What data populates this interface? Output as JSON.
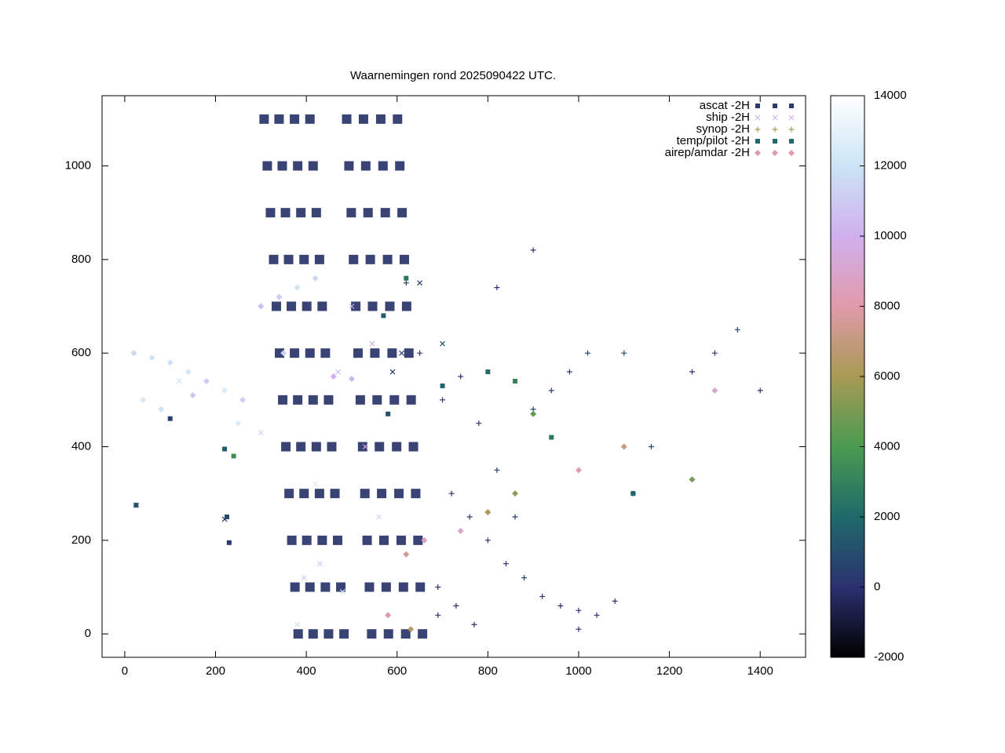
{
  "chart_data": {
    "type": "scatter",
    "title": "Waarnemingen rond 2025090422 UTC.",
    "xlim": [
      -50,
      1500
    ],
    "ylim": [
      -50,
      1150
    ],
    "xticks": [
      0,
      200,
      400,
      600,
      800,
      1000,
      1200,
      1400
    ],
    "yticks": [
      0,
      200,
      400,
      600,
      800,
      1000
    ],
    "cblim": [
      -2000,
      14000
    ],
    "cbticks": [
      -2000,
      0,
      2000,
      4000,
      6000,
      8000,
      10000,
      12000,
      14000
    ],
    "palette": [
      [
        -2000,
        "#000000"
      ],
      [
        0,
        "#2c3170"
      ],
      [
        2000,
        "#1f6a6a"
      ],
      [
        4000,
        "#4a9a50"
      ],
      [
        6000,
        "#a89a55"
      ],
      [
        8000,
        "#e09aaa"
      ],
      [
        10000,
        "#d0b0ee"
      ],
      [
        12000,
        "#cce4f5"
      ],
      [
        14000,
        "#ffffff"
      ]
    ],
    "legend": "top-right",
    "series": [
      {
        "name": "ascat -2H",
        "marker": "dot",
        "color": "#2e3a6e",
        "x": [
          382,
          415,
          449,
          483,
          375,
          408,
          442,
          476,
          368,
          401,
          435,
          469,
          362,
          395,
          429,
          463,
          355,
          388,
          422,
          456,
          348,
          381,
          415,
          449,
          341,
          374,
          408,
          442,
          334,
          367,
          401,
          435,
          328,
          361,
          395,
          429,
          321,
          354,
          388,
          422,
          314,
          347,
          381,
          415,
          307,
          340,
          374,
          408,
          544,
          581,
          619,
          656,
          539,
          576,
          614,
          651,
          534,
          571,
          609,
          646,
          529,
          566,
          604,
          641,
          524,
          561,
          599,
          636,
          519,
          556,
          594,
          631,
          514,
          551,
          589,
          626,
          509,
          546,
          584,
          621,
          504,
          541,
          579,
          616,
          499,
          536,
          574,
          611,
          494,
          531,
          569,
          606,
          489,
          526,
          564,
          601
        ],
        "y": [
          0,
          0,
          0,
          0,
          100,
          100,
          100,
          100,
          200,
          200,
          200,
          200,
          300,
          300,
          300,
          300,
          400,
          400,
          400,
          400,
          500,
          500,
          500,
          500,
          600,
          600,
          600,
          600,
          700,
          700,
          700,
          700,
          800,
          800,
          800,
          800,
          900,
          900,
          900,
          900,
          1000,
          1000,
          1000,
          1000,
          1100,
          1100,
          1100,
          1100,
          0,
          0,
          0,
          0,
          100,
          100,
          100,
          100,
          200,
          200,
          200,
          200,
          300,
          300,
          300,
          300,
          400,
          400,
          400,
          400,
          500,
          500,
          500,
          500,
          600,
          600,
          600,
          600,
          700,
          700,
          700,
          700,
          800,
          800,
          800,
          800,
          900,
          900,
          900,
          900,
          1000,
          1000,
          1000,
          1000,
          1100,
          1100,
          1100,
          1100
        ]
      },
      {
        "name": "ship -2H",
        "marker": "cross",
        "color": "#d0b0ee",
        "x": [
          25,
          220,
          430,
          380,
          470,
          530,
          610,
          560,
          420,
          395,
          500,
          545,
          700,
          650,
          120,
          300,
          590,
          480
        ],
        "y": [
          275,
          245,
          150,
          20,
          560,
          400,
          600,
          250,
          320,
          120,
          700,
          620,
          620,
          750,
          540,
          430,
          560,
          90
        ],
        "z": [
          1500,
          200,
          11000,
          12000,
          10500,
          9500,
          800,
          11500,
          12500,
          11000,
          10000,
          9800,
          1200,
          500,
          12000,
          11500,
          400,
          12200
        ]
      },
      {
        "name": "synop -2H",
        "marker": "plus",
        "color": "#a89a55",
        "x": [
          720,
          760,
          800,
          840,
          880,
          920,
          960,
          1000,
          1040,
          1080,
          1120,
          1160,
          700,
          740,
          780,
          820,
          860,
          900,
          940,
          980,
          1020,
          690,
          730,
          770,
          690,
          820,
          900,
          1250,
          1300,
          1350,
          1400,
          1000,
          1100,
          650,
          620
        ],
        "y": [
          300,
          250,
          200,
          150,
          120,
          80,
          60,
          50,
          40,
          70,
          300,
          400,
          500,
          550,
          450,
          350,
          250,
          480,
          520,
          560,
          600,
          100,
          60,
          20,
          40,
          740,
          820,
          560,
          600,
          650,
          520,
          10,
          600,
          600,
          750
        ],
        "z": [
          100,
          300,
          50,
          200,
          400,
          20,
          10,
          0,
          30,
          150,
          600,
          900,
          200,
          150,
          300,
          500,
          250,
          800,
          600,
          400,
          700,
          50,
          20,
          10,
          30,
          150,
          300,
          200,
          500,
          700,
          100,
          0,
          900,
          100,
          200
        ]
      },
      {
        "name": "temp/pilot -2H",
        "marker": "square",
        "color": "#1f6a6a",
        "x": [
          220,
          240,
          100,
          25,
          225,
          230,
          580,
          570,
          620,
          700,
          800,
          860,
          940,
          1120
        ],
        "y": [
          395,
          380,
          460,
          275,
          250,
          195,
          470,
          680,
          760,
          530,
          560,
          540,
          420,
          300
        ],
        "z": [
          1500,
          3500,
          500,
          1200,
          800,
          300,
          1000,
          1500,
          2500,
          1800,
          2200,
          3000,
          2600,
          1900
        ]
      },
      {
        "name": "airep/amdar -2H",
        "marker": "diamond",
        "color": "#e09aaa",
        "x": [
          20,
          60,
          100,
          140,
          180,
          220,
          260,
          300,
          340,
          380,
          420,
          460,
          500,
          40,
          80,
          150,
          250,
          350,
          620,
          660,
          740,
          800,
          860,
          1000,
          1100,
          1250,
          1300,
          900,
          580,
          630
        ],
        "y": [
          600,
          590,
          580,
          560,
          540,
          520,
          500,
          700,
          720,
          740,
          760,
          550,
          545,
          500,
          480,
          510,
          450,
          600,
          170,
          200,
          220,
          260,
          300,
          350,
          400,
          330,
          520,
          470,
          40,
          10
        ],
        "z": [
          11500,
          12000,
          11800,
          12200,
          11000,
          12500,
          11300,
          10500,
          11000,
          12000,
          11500,
          10000,
          10200,
          12300,
          11900,
          10800,
          12600,
          11200,
          7500,
          8500,
          9000,
          6000,
          5500,
          8200,
          7000,
          5000,
          9000,
          4500,
          8000,
          6500
        ]
      }
    ]
  }
}
